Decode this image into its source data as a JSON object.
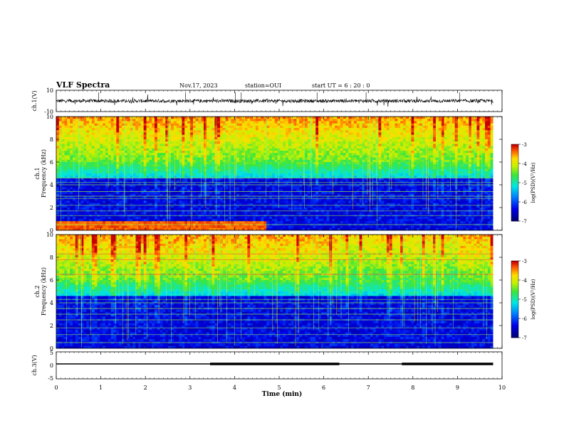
{
  "header": {
    "title": "VLF Spectra",
    "date": "Nov.17, 2023",
    "station": "station=OUI",
    "start": "start UT =  6 : 20 : 0"
  },
  "chart_data": [
    {
      "type": "line",
      "panel": "ch1-waveform",
      "ylabel": "ch.1(V)",
      "ylim": [
        -10,
        10
      ],
      "yticks": [
        "10",
        "-10"
      ],
      "x_range_min": [
        0,
        9.8
      ],
      "color": "#000000"
    },
    {
      "type": "heatmap",
      "panel": "ch1-spectrogram",
      "ylabel": "ch.1 Frequency (kHz)",
      "ylim": [
        0,
        10
      ],
      "yticks": [
        "0",
        "2",
        "4",
        "6",
        "8",
        "10"
      ],
      "colorbar": {
        "label": "log(PSD)(V²/Hz)",
        "range": [
          -7,
          -3
        ],
        "ticks": [
          "-3",
          "-4",
          "-5",
          "-6",
          "-7"
        ],
        "colormap": "rainbow"
      },
      "tones_khz": [
        0.5,
        1.3,
        1.7,
        2.2,
        2.8,
        3.0,
        3.4,
        4.0,
        4.2,
        4.6
      ],
      "note": "strong emission near 0.3 kHz until ~4.7 min"
    },
    {
      "type": "heatmap",
      "panel": "ch2-spectrogram",
      "ylabel": "ch.2 Frequency (kHz)",
      "ylim": [
        0,
        10
      ],
      "yticks": [
        "0",
        "2",
        "4",
        "6",
        "8",
        "10"
      ],
      "colorbar": {
        "label": "log(PSD)(V²/Hz)",
        "range": [
          -7,
          -3
        ],
        "ticks": [
          "-3",
          "-4",
          "-5",
          "-6",
          "-7"
        ],
        "colormap": "rainbow"
      },
      "tones_khz": [
        0.5,
        1.2,
        1.8,
        2.5,
        3.0,
        3.5,
        4.0,
        4.3,
        6.5,
        7.8,
        8.3
      ]
    },
    {
      "type": "line",
      "panel": "ch3-level",
      "ylabel": "ch.3(V)",
      "ylim": [
        -5,
        5
      ],
      "yticks": [
        "5",
        "0",
        "-5"
      ],
      "segments_min": [
        [
          0,
          3.45
        ],
        [
          3.45,
          6.35
        ],
        [
          6.35,
          7.75
        ],
        [
          7.75,
          9.8
        ]
      ],
      "segment_style": [
        "thin",
        "thick",
        "thin",
        "thick"
      ],
      "value": 0
    }
  ],
  "xaxis": {
    "label": "Time (min)",
    "ticks": [
      "0",
      "1",
      "2",
      "3",
      "4",
      "5",
      "6",
      "7",
      "8",
      "9",
      "10"
    ],
    "range": [
      0,
      10
    ]
  }
}
